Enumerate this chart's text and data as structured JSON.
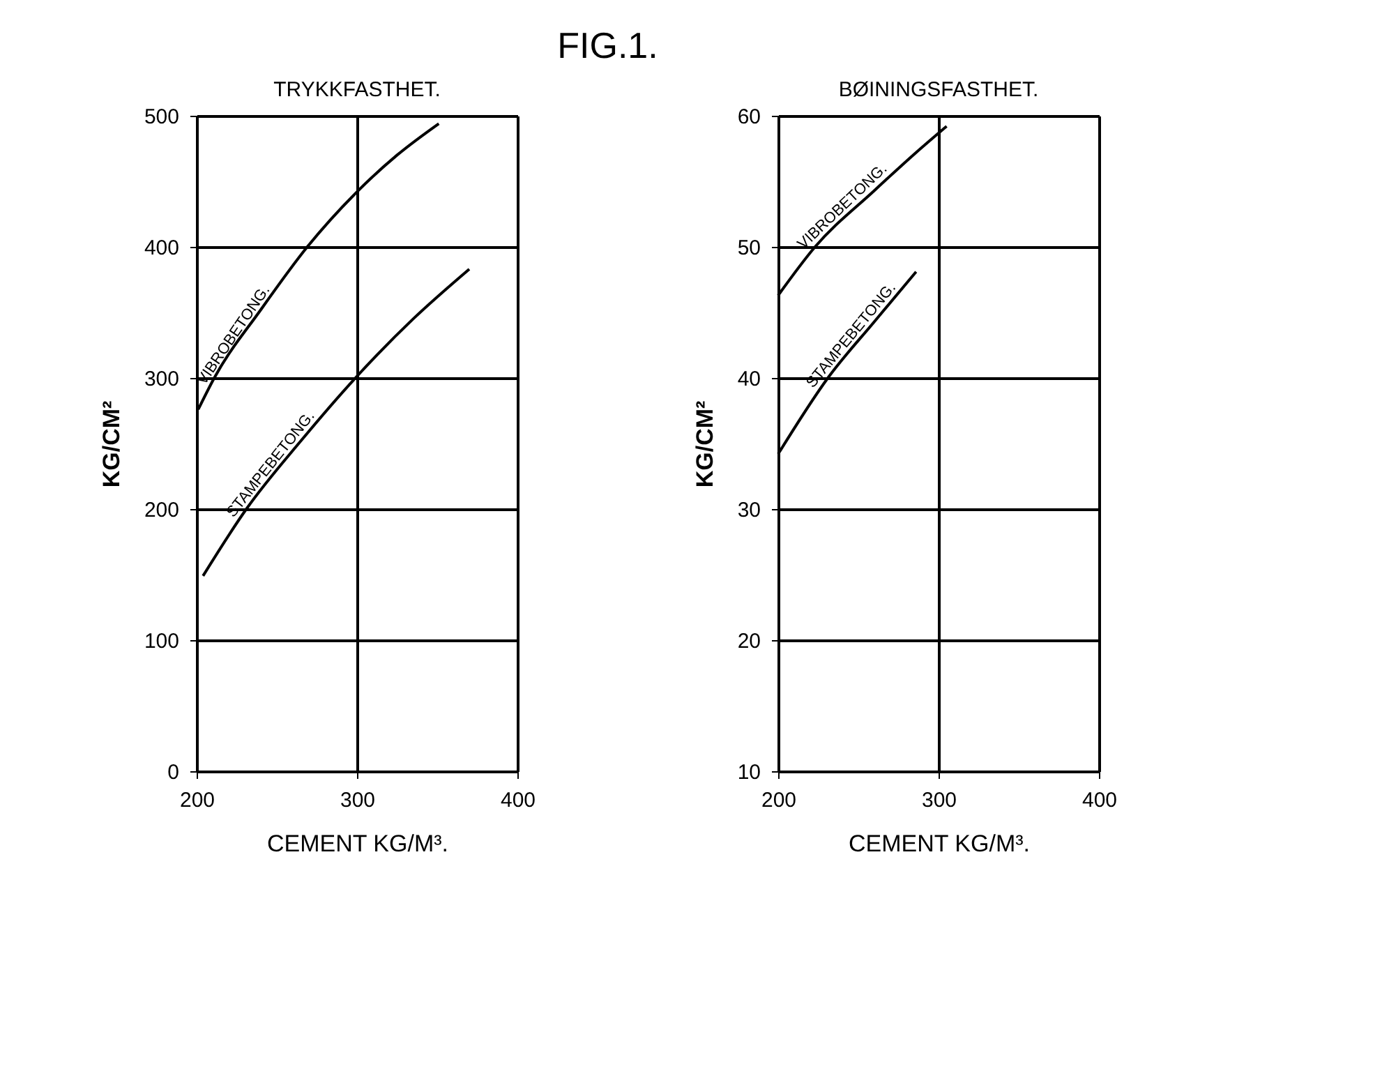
{
  "chart_data": [
    {
      "type": "line",
      "title": "TRYKKFASTHET.",
      "annotations": [
        "FIG.1."
      ],
      "xlabel": "CEMENT KG/M³.",
      "ylabel": "KG/CM²",
      "xlim": [
        200,
        400
      ],
      "xticks": [
        200,
        300,
        400
      ],
      "ylim": [
        0,
        500
      ],
      "yticks": [
        0,
        100,
        200,
        300,
        400,
        500
      ],
      "grid": true,
      "legend": false,
      "marker": "none",
      "line_style": "solid",
      "series": [
        {
          "name": "VIBROBETONG.",
          "color": "#000000",
          "x": [
            201,
            211,
            240,
            269,
            300,
            325,
            351
          ],
          "values": [
            276,
            300,
            352,
            400,
            442,
            470,
            494
          ]
        },
        {
          "name": "STAMPEBETONG.",
          "color": "#000000",
          "x": [
            204,
            231,
            265,
            299,
            335,
            370
          ],
          "values": [
            149,
            200,
            252,
            300,
            345,
            383
          ]
        }
      ]
    },
    {
      "type": "line",
      "title": "BØININGSFASTHET.",
      "xlabel": "CEMENT KG/M³.",
      "ylabel": "KG/CM²",
      "xlim": [
        200,
        400
      ],
      "xticks": [
        200,
        300,
        400
      ],
      "ylim": [
        10,
        60
      ],
      "yticks": [
        10,
        20,
        30,
        40,
        50,
        60
      ],
      "grid": true,
      "legend": false,
      "marker": "none",
      "line_style": "solid",
      "series": [
        {
          "name": "VIBROBETONG.",
          "color": "#000000",
          "x": [
            200,
            223,
            260,
            286,
            305
          ],
          "values": [
            46.3,
            50,
            54.3,
            57.2,
            59.2
          ]
        },
        {
          "name": "STAMPEBETONG.",
          "color": "#000000",
          "x": [
            200,
            231,
            260,
            286
          ],
          "values": [
            34.2,
            40,
            44.3,
            48.1
          ]
        }
      ]
    }
  ]
}
